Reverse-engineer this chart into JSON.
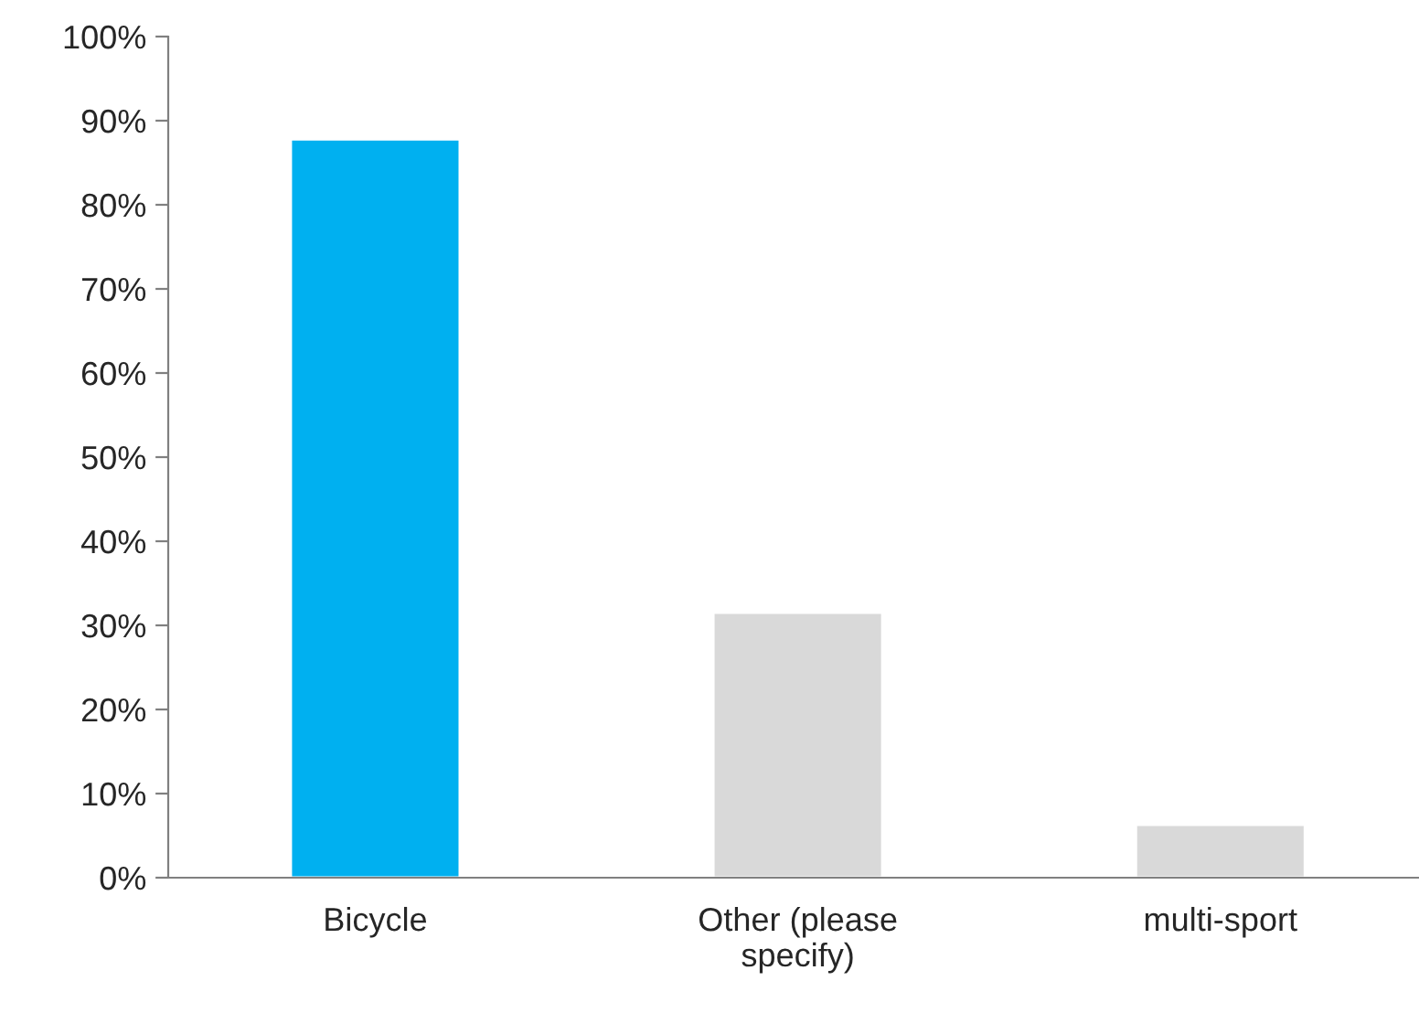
{
  "chart_data": {
    "type": "bar",
    "categories": [
      "Bicycle",
      "Other (please\nspecify)",
      "multi-sport"
    ],
    "values": [
      87.8,
      31.5,
      6.3
    ],
    "colors": [
      "#00b0f0",
      "#d9d9d9",
      "#d9d9d9"
    ],
    "ylim": [
      0,
      100
    ],
    "yticks": [
      {
        "value": 0,
        "label": "0%"
      },
      {
        "value": 10,
        "label": "10%"
      },
      {
        "value": 20,
        "label": "20%"
      },
      {
        "value": 30,
        "label": "30%"
      },
      {
        "value": 40,
        "label": "40%"
      },
      {
        "value": 50,
        "label": "50%"
      },
      {
        "value": 60,
        "label": "60%"
      },
      {
        "value": 70,
        "label": "70%"
      },
      {
        "value": 80,
        "label": "80%"
      },
      {
        "value": 90,
        "label": "90%"
      },
      {
        "value": 100,
        "label": "100%"
      }
    ],
    "grid": false,
    "legend": false
  }
}
